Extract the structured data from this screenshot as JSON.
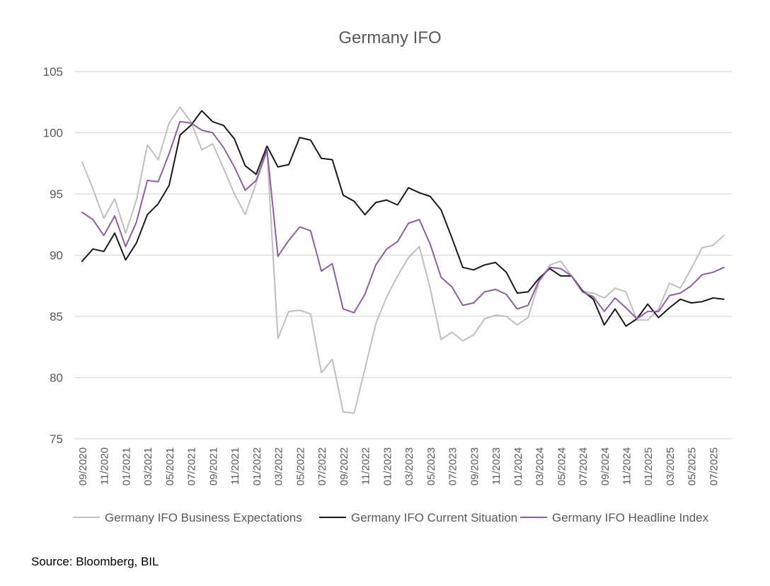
{
  "chart_data": {
    "type": "line",
    "title": "Germany IFO",
    "ylim": [
      75,
      105
    ],
    "yticks": [
      75,
      80,
      85,
      90,
      95,
      100,
      105
    ],
    "grid": true,
    "legend_position": "bottom",
    "x": [
      "09/2020",
      "10/2020",
      "11/2020",
      "12/2020",
      "01/2021",
      "02/2021",
      "03/2021",
      "04/2021",
      "05/2021",
      "06/2021",
      "07/2021",
      "08/2021",
      "09/2021",
      "10/2021",
      "11/2021",
      "12/2021",
      "01/2022",
      "02/2022",
      "03/2022",
      "04/2022",
      "05/2022",
      "06/2022",
      "07/2022",
      "08/2022",
      "09/2022",
      "10/2022",
      "11/2022",
      "12/2022",
      "01/2023",
      "02/2023",
      "03/2023",
      "04/2023",
      "05/2023",
      "06/2023",
      "07/2023",
      "08/2023",
      "09/2023",
      "10/2023",
      "11/2023",
      "12/2023",
      "01/2024",
      "02/2024",
      "03/2024",
      "04/2024",
      "05/2024",
      "06/2024",
      "07/2024",
      "08/2024",
      "09/2024",
      "10/2024",
      "11/2024",
      "12/2024",
      "01/2025",
      "02/2025",
      "03/2025",
      "04/2025",
      "05/2025",
      "06/2025",
      "07/2025",
      "08/2025"
    ],
    "x_tick_labels": [
      "09/2020",
      "11/2020",
      "01/2021",
      "03/2021",
      "05/2021",
      "07/2021",
      "09/2021",
      "11/2021",
      "01/2022",
      "03/2022",
      "05/2022",
      "07/2022",
      "09/2022",
      "11/2022",
      "01/2023",
      "03/2023",
      "05/2023",
      "07/2023",
      "09/2023",
      "11/2023",
      "01/2024",
      "03/2024",
      "05/2024",
      "07/2024",
      "09/2024",
      "11/2024",
      "01/2025",
      "03/2025",
      "05/2025",
      "07/2025"
    ],
    "series": [
      {
        "name": "Germany IFO Business Expectations",
        "color": "#bfbfbf",
        "values": [
          97.6,
          95.4,
          93.0,
          94.6,
          91.8,
          94.5,
          99.0,
          97.8,
          100.8,
          102.1,
          100.9,
          98.6,
          99.1,
          97.1,
          95.0,
          93.3,
          95.9,
          98.5,
          83.2,
          85.4,
          85.5,
          85.2,
          80.4,
          81.5,
          77.2,
          77.1,
          80.7,
          84.4,
          86.6,
          88.3,
          89.8,
          90.7,
          87.3,
          83.1,
          83.7,
          83.0,
          83.5,
          84.8,
          85.1,
          85.0,
          84.3,
          84.9,
          87.8,
          89.2,
          89.5,
          88.3,
          87.0,
          86.9,
          86.5,
          87.3,
          87.0,
          84.7,
          84.7,
          85.6,
          87.7,
          87.3,
          88.9,
          90.6,
          90.8,
          91.6
        ]
      },
      {
        "name": "Germany IFO Current Situation",
        "color": "#1a1a1a",
        "values": [
          89.5,
          90.5,
          90.3,
          91.8,
          89.6,
          91.0,
          93.3,
          94.2,
          95.7,
          99.8,
          100.6,
          101.8,
          100.9,
          100.6,
          99.5,
          97.3,
          96.6,
          98.9,
          97.2,
          97.4,
          99.6,
          99.4,
          97.9,
          97.8,
          94.9,
          94.4,
          93.3,
          94.3,
          94.5,
          94.1,
          95.5,
          95.1,
          94.8,
          93.7,
          91.4,
          89.0,
          88.8,
          89.2,
          89.4,
          88.6,
          86.9,
          87.0,
          88.1,
          88.9,
          88.3,
          88.3,
          87.1,
          86.4,
          84.3,
          85.6,
          84.2,
          84.8,
          86.0,
          84.9,
          85.7,
          86.4,
          86.1,
          86.2,
          86.5,
          86.4
        ]
      },
      {
        "name": "Germany IFO Headline Index",
        "color": "#8e5ea2",
        "values": [
          93.5,
          92.9,
          91.6,
          93.2,
          90.7,
          92.7,
          96.1,
          96.0,
          98.3,
          100.9,
          100.8,
          100.2,
          100.0,
          98.8,
          97.2,
          95.3,
          96.1,
          98.6,
          89.9,
          91.2,
          92.3,
          92.0,
          88.7,
          89.3,
          85.6,
          85.3,
          86.8,
          89.2,
          90.5,
          91.1,
          92.6,
          92.9,
          90.9,
          88.2,
          87.4,
          85.9,
          86.1,
          87.0,
          87.2,
          86.8,
          85.6,
          85.9,
          87.9,
          89.0,
          88.9,
          88.3,
          87.0,
          86.6,
          85.4,
          86.5,
          85.7,
          84.8,
          85.4,
          85.4,
          86.7,
          86.9,
          87.5,
          88.4,
          88.6,
          89.0
        ]
      }
    ]
  },
  "source_note": "Source: Bloomberg, BIL"
}
